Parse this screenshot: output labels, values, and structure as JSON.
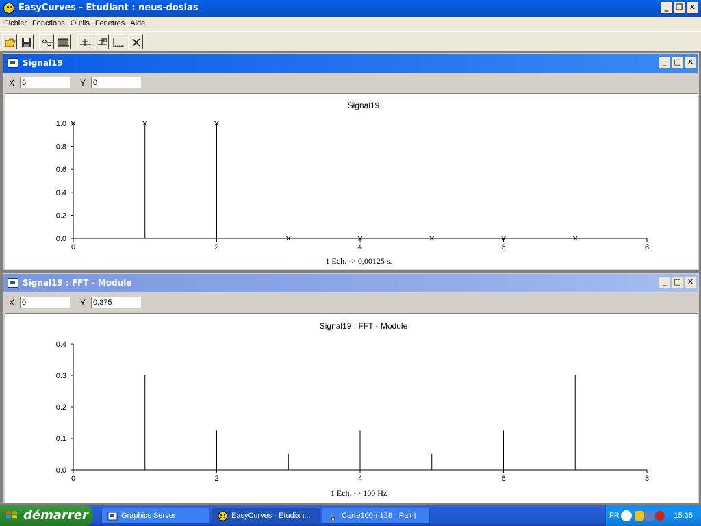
{
  "app": {
    "title": "EasyCurves - Etudiant : neus-dosias"
  },
  "menu": [
    "Fichier",
    "Fonctions",
    "Outils",
    "Fenetres",
    "Aide"
  ],
  "toolbar": {
    "icons": [
      "open-folder-icon",
      "save-disk-icon",
      "signal-wave-icon",
      "signal-pulses-icon",
      "zoom-horizontal-icon",
      "zoom-range-icon",
      "sample-axis-icon",
      "close-x-icon"
    ]
  },
  "windows": [
    {
      "title": "Signal19",
      "x_label": "X",
      "x_value": "6",
      "y_label": "Y",
      "y_value": "0",
      "active": true
    },
    {
      "title": "Signal19 : FFT - Module",
      "x_label": "X",
      "x_value": "0",
      "y_label": "Y",
      "y_value": "0,375",
      "active": false
    }
  ],
  "chart_data": [
    {
      "type": "stem",
      "title": "Signal19",
      "xlabel": "1 Ech. -> 0,00125 s.",
      "ylabel": "",
      "x": [
        0,
        1,
        2,
        3,
        4,
        5,
        6,
        7
      ],
      "values": [
        1,
        1,
        1,
        0,
        0,
        0,
        0,
        0
      ],
      "markers": true,
      "xlim": [
        0,
        8
      ],
      "ylim": [
        0,
        1
      ],
      "xticks": [
        "0",
        "2",
        "4",
        "6",
        "8"
      ],
      "yticks": [
        "0.0",
        "0.2",
        "0.4",
        "0.6",
        "0.8",
        "1.0"
      ],
      "grid": false
    },
    {
      "type": "stem",
      "title": "Signal19 : FFT - Module",
      "xlabel": "1 Ech. -> 100 Hz",
      "ylabel": "",
      "x": [
        0,
        1,
        2,
        3,
        4,
        5,
        6,
        7
      ],
      "values": [
        0.375,
        0.3,
        0.125,
        0.05,
        0.125,
        0.05,
        0.125,
        0.3
      ],
      "markers": false,
      "xlim": [
        0,
        8
      ],
      "ylim": [
        0,
        0.4
      ],
      "xticks": [
        "0",
        "2",
        "4",
        "6",
        "8"
      ],
      "yticks": [
        "0.0",
        "0.1",
        "0.2",
        "0.3",
        "0.4"
      ],
      "grid": false
    }
  ],
  "taskbar": {
    "start_label": "démarrer",
    "tasks": [
      {
        "label": "Graphics Server",
        "pressed": false
      },
      {
        "label": "EasyCurves - Etudian...",
        "pressed": true
      },
      {
        "label": "Carre100-n128 - Paint",
        "pressed": false
      }
    ],
    "lang": "FR",
    "clock": "15:35"
  }
}
